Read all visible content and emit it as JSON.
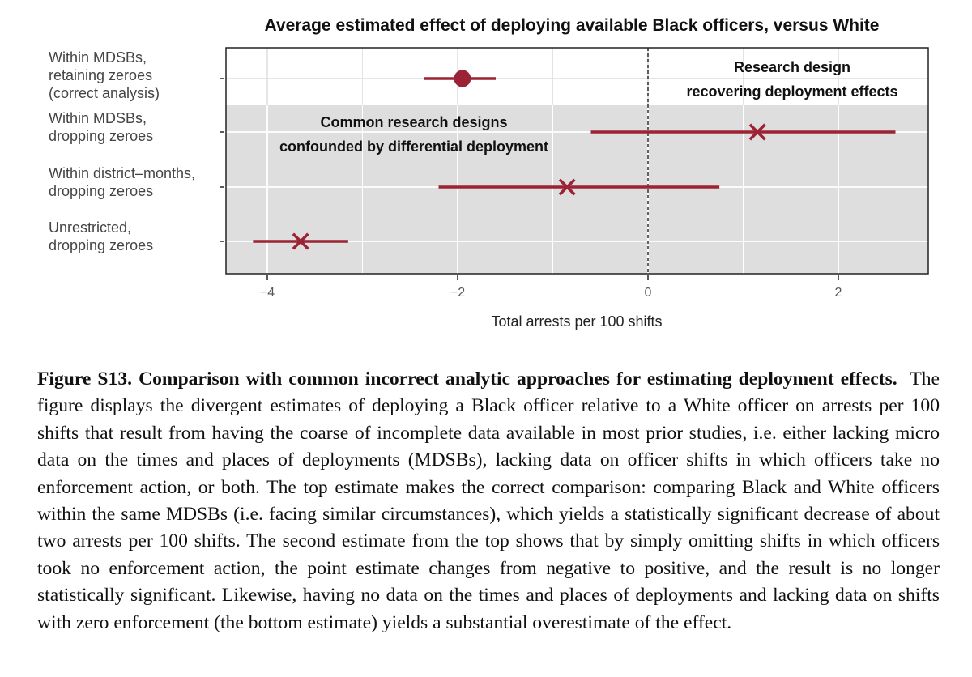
{
  "chart_data": {
    "type": "dot-whisker",
    "title": "Average estimated effect of deploying available Black officers, versus White",
    "xlabel": "Total arrests per 100 shifts",
    "ylabel": "",
    "xlim": [
      -4.3,
      3.0
    ],
    "xticks": [
      -4,
      -2,
      0,
      2
    ],
    "xtick_labels": [
      "−4",
      "−2",
      "0",
      "2"
    ],
    "grid": true,
    "reference_line": 0,
    "estimates": [
      {
        "label_lines": [
          "Within MDSBs,",
          "retaining zeroes",
          "(correct analysis)"
        ],
        "estimate": -1.95,
        "ci_low": -2.35,
        "ci_high": -1.6,
        "marker": "circle",
        "shaded": false
      },
      {
        "label_lines": [
          "Within MDSBs,",
          "dropping zeroes"
        ],
        "estimate": 1.15,
        "ci_low": -0.6,
        "ci_high": 2.6,
        "marker": "x",
        "shaded": true
      },
      {
        "label_lines": [
          "Within district–months,",
          "dropping zeroes"
        ],
        "estimate": -0.85,
        "ci_low": -2.2,
        "ci_high": 0.75,
        "marker": "x",
        "shaded": true
      },
      {
        "label_lines": [
          "Unrestricted,",
          "dropping zeroes"
        ],
        "estimate": -3.65,
        "ci_low": -4.15,
        "ci_high": -3.15,
        "marker": "x",
        "shaded": true
      }
    ],
    "annotations": {
      "unshaded": [
        "Research design",
        "recovering deployment effects"
      ],
      "shaded": [
        "Common research designs",
        "confounded by differential deployment"
      ]
    },
    "colors": {
      "marker": "#9b2335",
      "shade": "#dedede",
      "grid": "#ffffff",
      "grid_unshaded": "#e3e3e3",
      "frame": "#222222"
    }
  },
  "caption": {
    "bold": "Figure S13. Comparison with common incorrect analytic approaches for estimating deployment effects.",
    "body": "The figure displays the divergent estimates of deploying a Black officer relative to a White officer on arrests per 100 shifts that result from having the coarse of incomplete data available in most prior studies, i.e. either lacking micro data on the times and places of deployments (MDSBs), lacking data on officer shifts in which officers take no enforcement action, or both. The top estimate makes the correct comparison: comparing Black and White officers within the same MDSBs (i.e. facing similar circumstances), which yields a statistically significant decrease of about two arrests per 100 shifts. The second estimate from the top shows that by simply omitting shifts in which officers took no enforcement action, the point estimate changes from negative to positive, and the result is no longer statistically significant. Likewise, having no data on the times and places of deployments and lacking data on shifts with zero enforcement (the bottom estimate) yields a substantial overestimate of the effect."
  }
}
